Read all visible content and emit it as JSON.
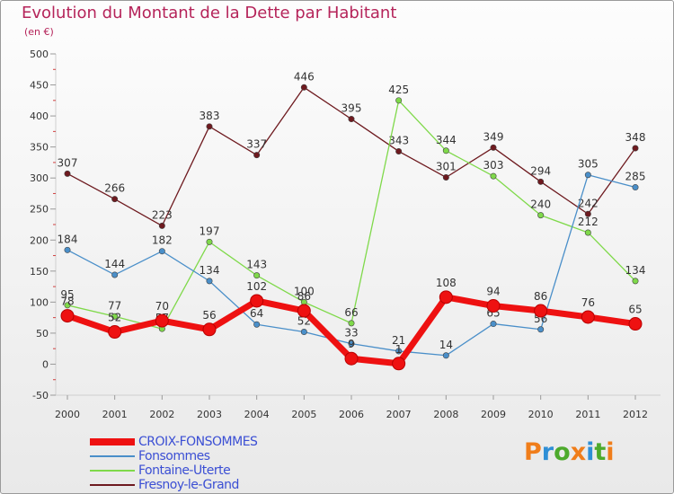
{
  "title": "Evolution du Montant de la Dette par Habitant",
  "subtitle": "(en €)",
  "logo": {
    "letters": [
      "P",
      "r",
      "o",
      "x",
      "i",
      "t",
      "i"
    ],
    "colors": [
      "#f07d1a",
      "#2f8fd6",
      "#4daa2c",
      "#f07d1a",
      "#2f8fd6",
      "#4daa2c",
      "#f07d1a"
    ]
  },
  "chart_data": {
    "type": "line",
    "title": "Evolution du Montant de la Dette par Habitant",
    "ylabel": "(en €)",
    "xlabel": "",
    "x": [
      "2000",
      "2001",
      "2002",
      "2003",
      "2004",
      "2005",
      "2006",
      "2007",
      "2008",
      "2009",
      "2010",
      "2011",
      "2012"
    ],
    "ylim": [
      -50,
      500
    ],
    "yticks": [
      -50,
      0,
      50,
      100,
      150,
      200,
      250,
      300,
      350,
      400,
      450,
      500
    ],
    "grid": false,
    "legend": "bottom-left",
    "series": [
      {
        "name": "Fresnoy-le-Grand",
        "color": "#6e1a1f",
        "values": [
          307,
          266,
          223,
          383,
          337,
          446,
          395,
          343,
          301,
          349,
          294,
          242,
          348
        ]
      },
      {
        "name": "Fontaine-Uterte",
        "color": "#7fd94a",
        "values": [
          95,
          77,
          57,
          197,
          143,
          100,
          66,
          425,
          344,
          303,
          240,
          212,
          134
        ]
      },
      {
        "name": "Fonsommes",
        "color": "#4a8fc9",
        "values": [
          184,
          144,
          182,
          134,
          64,
          52,
          33,
          21,
          14,
          65,
          56,
          305,
          285
        ]
      },
      {
        "name": "CROIX-FONSOMMES",
        "color": "#ee1111",
        "values": [
          78,
          52,
          70,
          56,
          102,
          86,
          9,
          1,
          108,
          94,
          86,
          76,
          65
        ]
      }
    ]
  },
  "legend": [
    {
      "name": "CROIX-FONSOMMES",
      "color": "#ee1111"
    },
    {
      "name": "Fonsommes",
      "color": "#4a8fc9"
    },
    {
      "name": "Fontaine-Uterte",
      "color": "#7fd94a"
    },
    {
      "name": "Fresnoy-le-Grand",
      "color": "#6e1a1f"
    }
  ]
}
